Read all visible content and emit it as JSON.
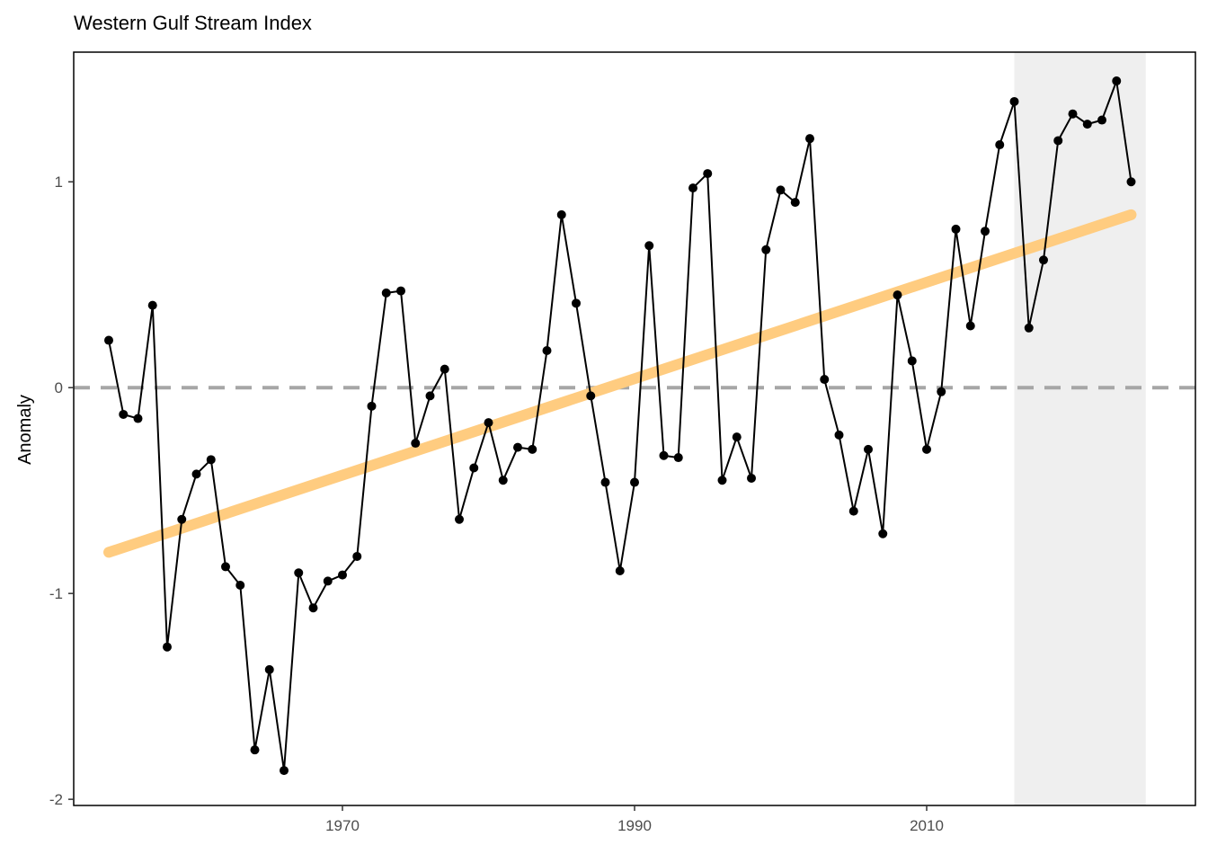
{
  "chart_data": {
    "type": "line",
    "title": "Western Gulf Stream Index",
    "xlabel": "",
    "ylabel": "Anomaly",
    "xlim": [
      1951.6,
      2028.4
    ],
    "ylim": [
      -2.03,
      1.63
    ],
    "x_ticks": [
      1970,
      1990,
      2010
    ],
    "y_ticks": [
      -2,
      -1,
      0,
      1
    ],
    "x_tick_labels": [
      "1970",
      "1990",
      "2010"
    ],
    "y_tick_labels": [
      "-2",
      "-1",
      "0",
      "1"
    ],
    "grid": false,
    "reference_line": {
      "y": 0,
      "style": "dashed",
      "color": "#a6a6a6"
    },
    "highlight_range": {
      "x": [
        2016,
        2025
      ],
      "color": "#efefef"
    },
    "trend": {
      "x": [
        1954,
        2024
      ],
      "y": [
        -0.8,
        0.84
      ],
      "color": "#ffcc80"
    },
    "series": [
      {
        "color": "#000000",
        "x": [
          1954,
          1955,
          1956,
          1957,
          1958,
          1959,
          1960,
          1961,
          1962,
          1963,
          1964,
          1965,
          1966,
          1967,
          1968,
          1969,
          1970,
          1971,
          1972,
          1973,
          1974,
          1975,
          1976,
          1977,
          1978,
          1979,
          1980,
          1981,
          1982,
          1983,
          1984,
          1985,
          1986,
          1987,
          1988,
          1989,
          1990,
          1991,
          1992,
          1993,
          1994,
          1995,
          1996,
          1997,
          1998,
          1999,
          2000,
          2001,
          2002,
          2003,
          2004,
          2005,
          2006,
          2007,
          2008,
          2009,
          2010,
          2011,
          2012,
          2013,
          2014,
          2015,
          2016,
          2017,
          2018,
          2019,
          2020,
          2021,
          2022,
          2023,
          2024
        ],
        "y": [
          0.23,
          -0.13,
          -0.15,
          0.4,
          -1.26,
          -0.64,
          -0.42,
          -0.35,
          -0.87,
          -0.96,
          -1.76,
          -1.37,
          -1.86,
          -0.9,
          -1.07,
          -0.94,
          -0.91,
          -0.82,
          -0.09,
          0.46,
          0.47,
          -0.27,
          -0.04,
          0.09,
          -0.64,
          -0.39,
          -0.17,
          -0.45,
          -0.29,
          -0.3,
          0.18,
          0.84,
          0.41,
          -0.04,
          -0.46,
          -0.89,
          -0.46,
          0.69,
          -0.33,
          -0.34,
          0.97,
          1.04,
          -0.45,
          -0.24,
          -0.44,
          0.67,
          0.96,
          0.9,
          1.21,
          0.04,
          -0.23,
          -0.6,
          -0.3,
          -0.71,
          0.45,
          0.13,
          -0.3,
          -0.02,
          0.77,
          0.3,
          0.76,
          1.18,
          1.39,
          0.29,
          0.62,
          1.2,
          1.33,
          1.28,
          1.3,
          1.49,
          1.0
        ]
      }
    ]
  }
}
